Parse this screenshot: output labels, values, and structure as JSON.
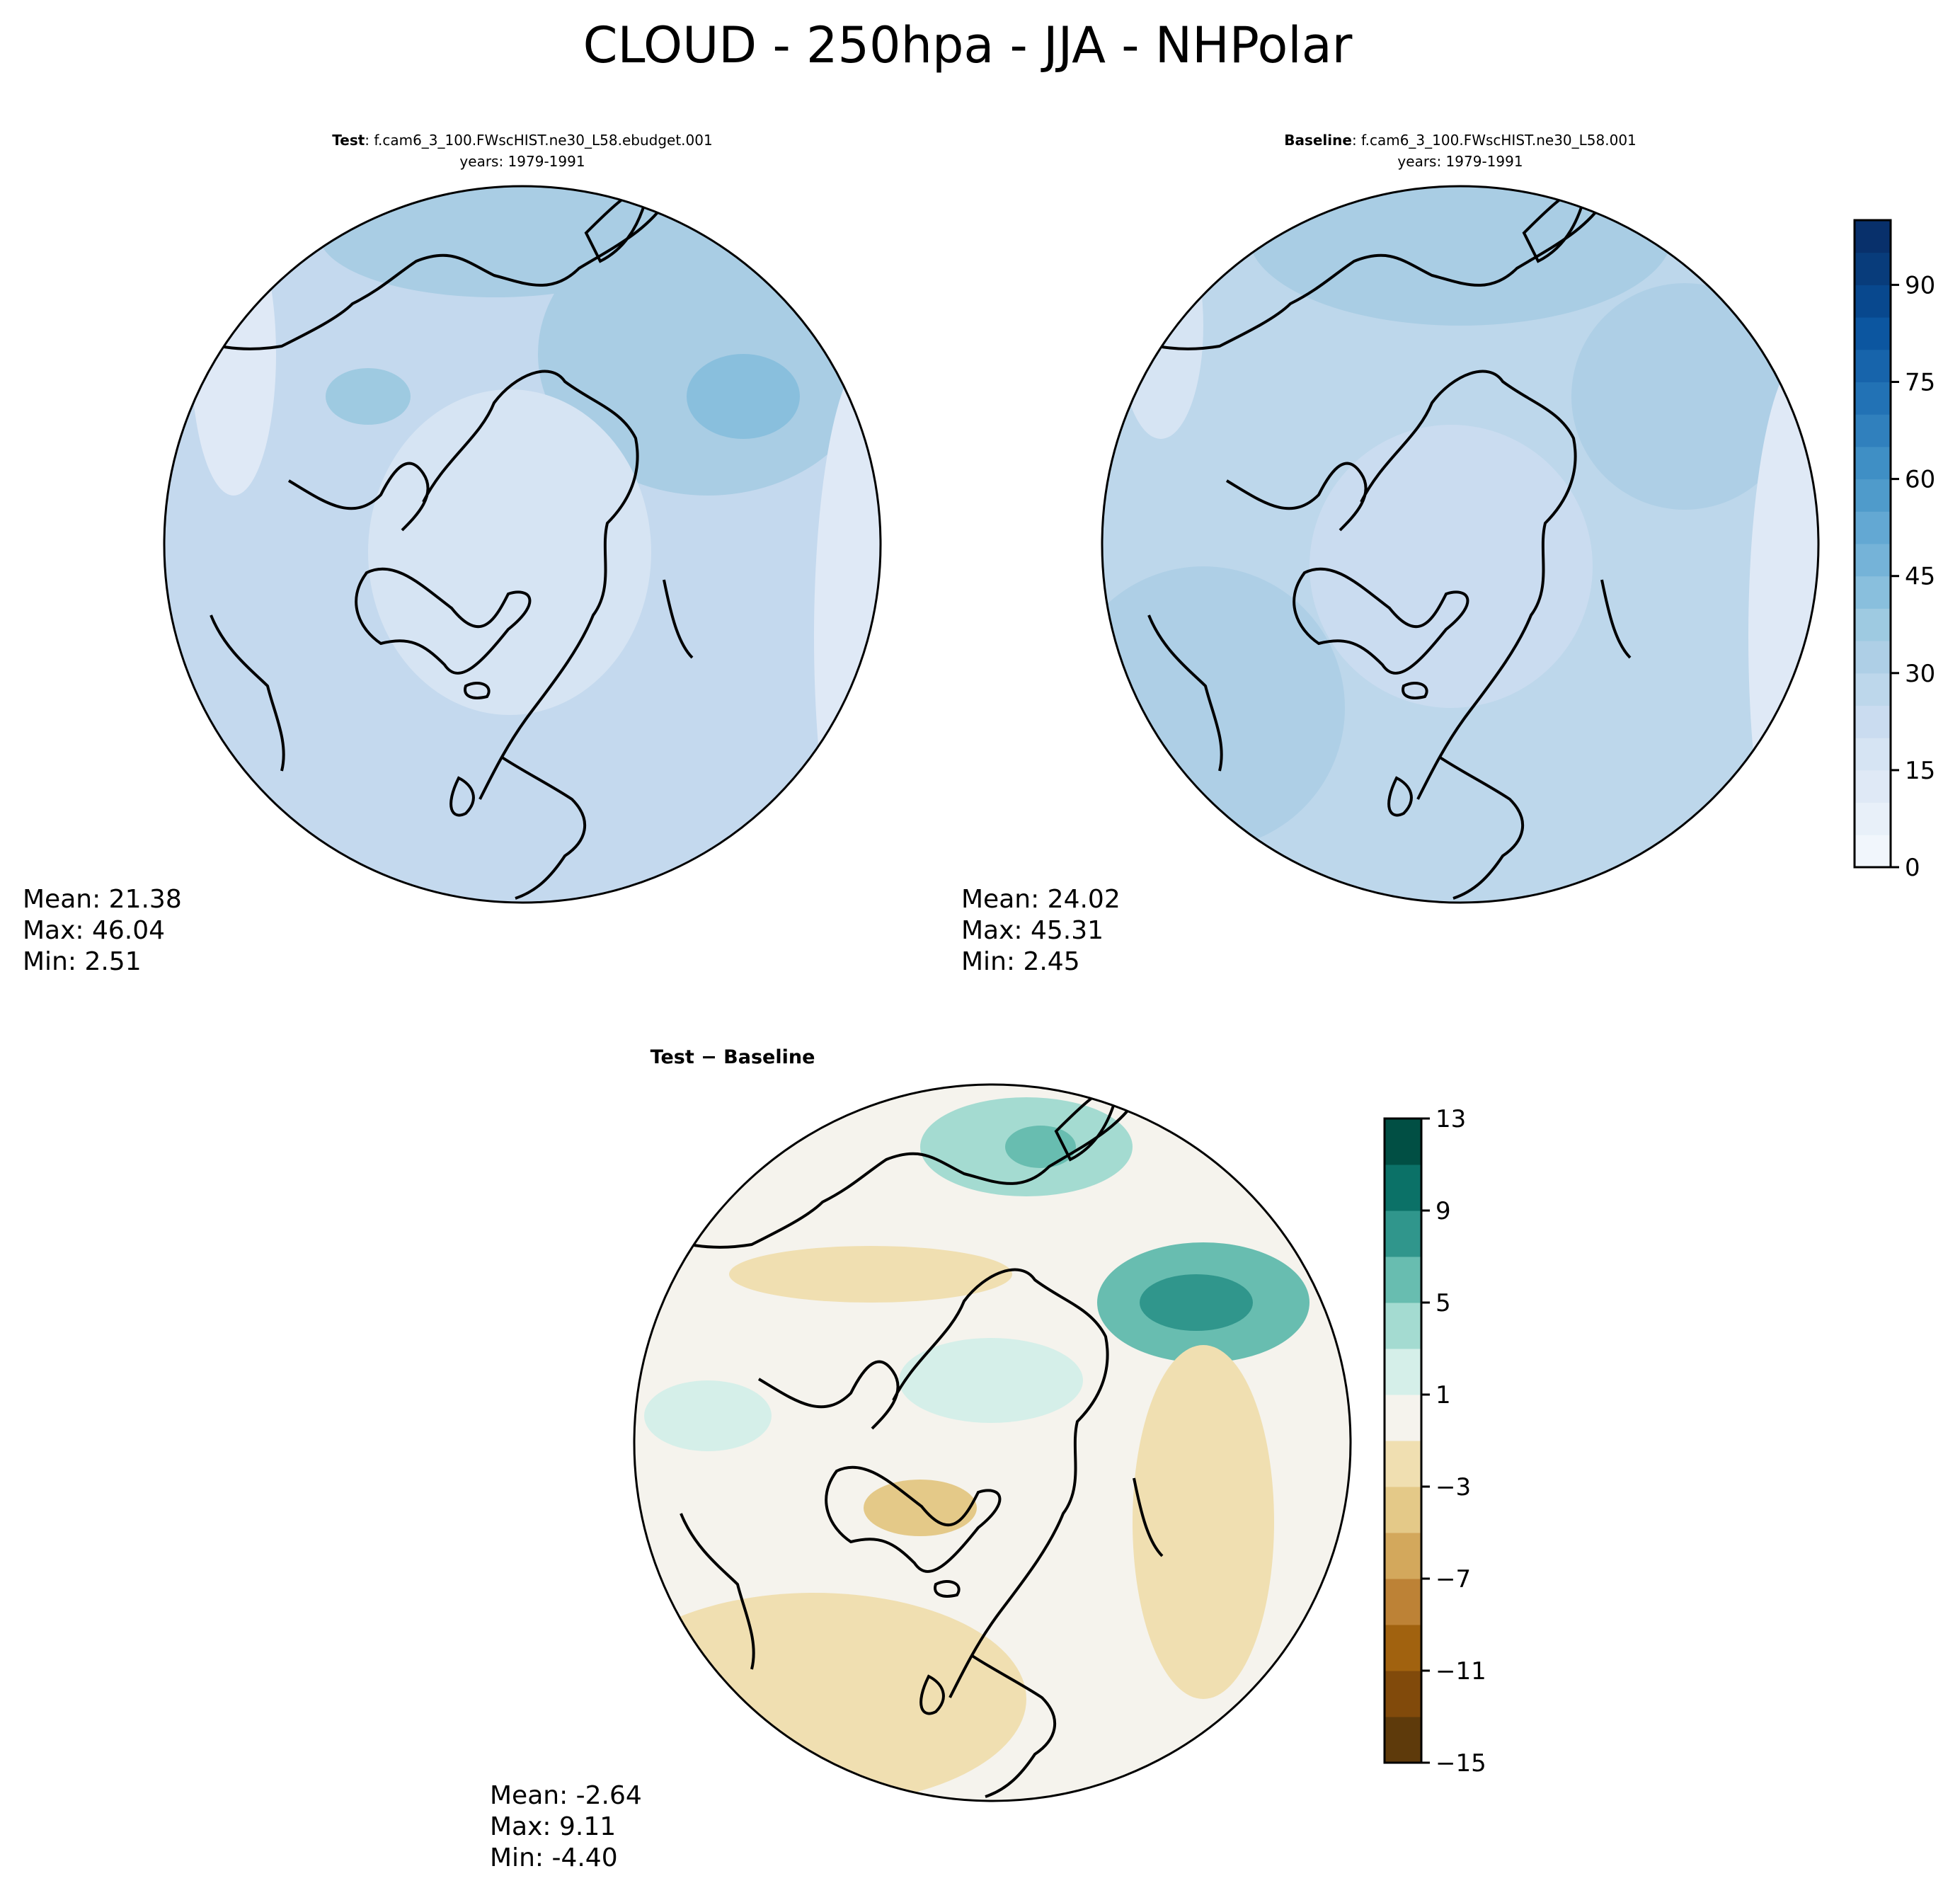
{
  "figure_title": "CLOUD - 250hpa - JJA - NHPolar",
  "panels": [
    {
      "label": "Test",
      "case": ": f.cam6_3_100.FWscHIST.ne30_L58.ebudget.001",
      "years": "years: 1979-1991",
      "stats": {
        "mean": "Mean: 21.38",
        "max": "Max: 46.04",
        "min": "Min:  2.51"
      }
    },
    {
      "label": "Baseline",
      "case": ": f.cam6_3_100.FWscHIST.ne30_L58.001",
      "years": "years: 1979-1991",
      "stats": {
        "mean": "Mean: 24.02",
        "max": "Max: 45.31",
        "min": "Min:  2.45"
      }
    },
    {
      "label": "Test − Baseline",
      "stats": {
        "mean": "Mean: -2.64",
        "max": "Max:  9.11",
        "min": "Min: -4.40"
      }
    }
  ],
  "colorbars": {
    "abs": {
      "min": 0,
      "max": 100,
      "step": 5,
      "ticks": [
        "0",
        "15",
        "30",
        "45",
        "60",
        "75",
        "90"
      ],
      "colors": [
        "#f1f6fc",
        "#e8f0f9",
        "#dfe9f6",
        "#d6e4f3",
        "#cadcf0",
        "#bdd7eb",
        "#aecfe6",
        "#9ecae1",
        "#89bfdd",
        "#75b3d8",
        "#63a8d3",
        "#4f9bcb",
        "#3f8fc5",
        "#3080bd",
        "#2272b5",
        "#1764ab",
        "#0c56a0",
        "#08488e",
        "#083c7b",
        "#08306b"
      ]
    },
    "diff": {
      "min": -15,
      "max": 13,
      "step": 2,
      "ticks": [
        "13",
        "9",
        "5",
        "1",
        "−3",
        "−7",
        "−11",
        "−15"
      ],
      "colors": [
        "#5e3a0b",
        "#814a0b",
        "#a1620f",
        "#bd8236",
        "#d3a85c",
        "#e4c988",
        "#f0dfb1",
        "#f5f3ed",
        "#d5efe9",
        "#a4dbd1",
        "#68bdb0",
        "#30968c",
        "#0b7167",
        "#014f44"
      ]
    }
  },
  "chart_data": {
    "type": "heatmap",
    "title": "CLOUD - 250hpa - JJA - NHPolar",
    "projection": "north polar stereographic",
    "panels": [
      {
        "name": "Test",
        "mean": 21.38,
        "max": 46.04,
        "min": 2.51,
        "clim": [
          0,
          100
        ]
      },
      {
        "name": "Baseline",
        "mean": 24.02,
        "max": 45.31,
        "min": 2.45,
        "clim": [
          0,
          100
        ]
      },
      {
        "name": "Test - Baseline",
        "mean": -2.64,
        "max": 9.11,
        "min": -4.4,
        "clim": [
          -15,
          13
        ]
      }
    ]
  }
}
